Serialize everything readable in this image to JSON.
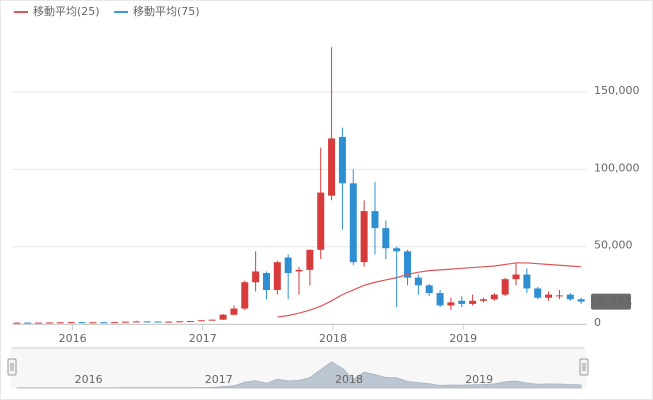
{
  "chart_data": {
    "type": "candlestick",
    "categories": [
      null,
      null,
      null,
      null,
      null,
      null,
      "2016",
      null,
      null,
      null,
      null,
      null,
      null,
      null,
      null,
      null,
      null,
      null,
      "2017",
      null,
      null,
      null,
      null,
      null,
      null,
      null,
      null,
      null,
      null,
      null,
      "2018",
      null,
      null,
      null,
      null,
      null,
      null,
      null,
      null,
      null,
      null,
      null,
      "2019",
      null,
      null,
      null,
      null,
      null,
      null,
      null,
      null,
      null,
      null
    ],
    "open": [
      800,
      900,
      850,
      900,
      1000,
      1100,
      1200,
      1100,
      1150,
      1100,
      1200,
      1500,
      1700,
      1600,
      1500,
      1550,
      1750,
      1900,
      2400,
      2800,
      6000,
      10000,
      27000,
      33000,
      22000,
      43000,
      34000,
      35000,
      48000,
      83000,
      121000,
      91000,
      40000,
      73000,
      62000,
      49000,
      47000,
      30000,
      25000,
      20000,
      12000,
      15000,
      13000,
      15000,
      16000,
      19000,
      29000,
      32000,
      23000,
      17000,
      18000,
      19000,
      16000
    ],
    "high": [
      1000,
      1000,
      950,
      1100,
      1300,
      1300,
      1300,
      1200,
      1200,
      1250,
      1600,
      2100,
      1800,
      1700,
      1650,
      1800,
      2000,
      2500,
      2900,
      6500,
      12000,
      28000,
      47000,
      34000,
      41000,
      45000,
      37000,
      48000,
      114000,
      179000,
      127000,
      100000,
      80000,
      92000,
      67000,
      50000,
      48000,
      32000,
      26000,
      22000,
      17000,
      18000,
      19000,
      17000,
      20000,
      30000,
      39000,
      36000,
      24000,
      21000,
      22000,
      20000,
      17000
    ],
    "low": [
      700,
      800,
      800,
      850,
      900,
      1000,
      1000,
      1000,
      1050,
      1080,
      1150,
      1400,
      1500,
      1400,
      1450,
      1500,
      1700,
      1850,
      2200,
      2600,
      5500,
      9000,
      21000,
      16000,
      19000,
      16000,
      19000,
      25000,
      42000,
      80000,
      61000,
      38000,
      37000,
      45000,
      42000,
      11000,
      25000,
      19000,
      18000,
      11000,
      9000,
      11000,
      12000,
      14000,
      15000,
      18000,
      25000,
      20000,
      16000,
      15000,
      16000,
      15000,
      13000
    ],
    "close": [
      900,
      850,
      900,
      1000,
      1100,
      1200,
      1100,
      1150,
      1100,
      1200,
      1500,
      1700,
      1600,
      1500,
      1550,
      1750,
      1900,
      2400,
      2800,
      6000,
      10000,
      27000,
      34000,
      22000,
      40000,
      33000,
      35000,
      48000,
      85000,
      120000,
      91000,
      40000,
      73000,
      62000,
      49000,
      47000,
      30000,
      25000,
      20000,
      12000,
      14000,
      13000,
      15000,
      16000,
      19000,
      29000,
      32000,
      23000,
      17000,
      19000,
      18500,
      16000,
      14491
    ],
    "up_color": "#d83b3b",
    "down_color": "#2d8fd2",
    "last_close_label": "14,491",
    "series": [
      {
        "name": "移動平均(25)",
        "color": "#e05555",
        "values": [
          null,
          null,
          null,
          null,
          null,
          null,
          null,
          null,
          null,
          null,
          null,
          null,
          null,
          null,
          null,
          null,
          null,
          null,
          null,
          null,
          null,
          null,
          null,
          null,
          4500,
          5500,
          7000,
          9000,
          11500,
          15000,
          19000,
          22000,
          25000,
          27000,
          28500,
          30000,
          32000,
          33500,
          34500,
          35000,
          35500,
          36000,
          36500,
          37000,
          37500,
          38500,
          39500,
          39500,
          39000,
          38500,
          38000,
          37500,
          37000
        ]
      },
      {
        "name": "移動平均(75)",
        "color": "#3a9ad6",
        "values": [
          null,
          null,
          null,
          null,
          null,
          null,
          null,
          null,
          null,
          null,
          null,
          null,
          null,
          null,
          null,
          null,
          null,
          null,
          null,
          null,
          null,
          null,
          null,
          null,
          null,
          null,
          null,
          null,
          null,
          null,
          null,
          null,
          null,
          null,
          null,
          null,
          null,
          null,
          null,
          null,
          null,
          null,
          null,
          null,
          null,
          null,
          null,
          null,
          null,
          null,
          null,
          null,
          null
        ]
      }
    ],
    "ylim": [
      0,
      195000
    ],
    "yticks": [
      0,
      {
        "value": 50000,
        "label": "50,000"
      },
      {
        "value": 100000,
        "label": "100,000"
      },
      {
        "value": 150000,
        "label": "150,000"
      }
    ],
    "grid": true,
    "legend": "top-left"
  }
}
